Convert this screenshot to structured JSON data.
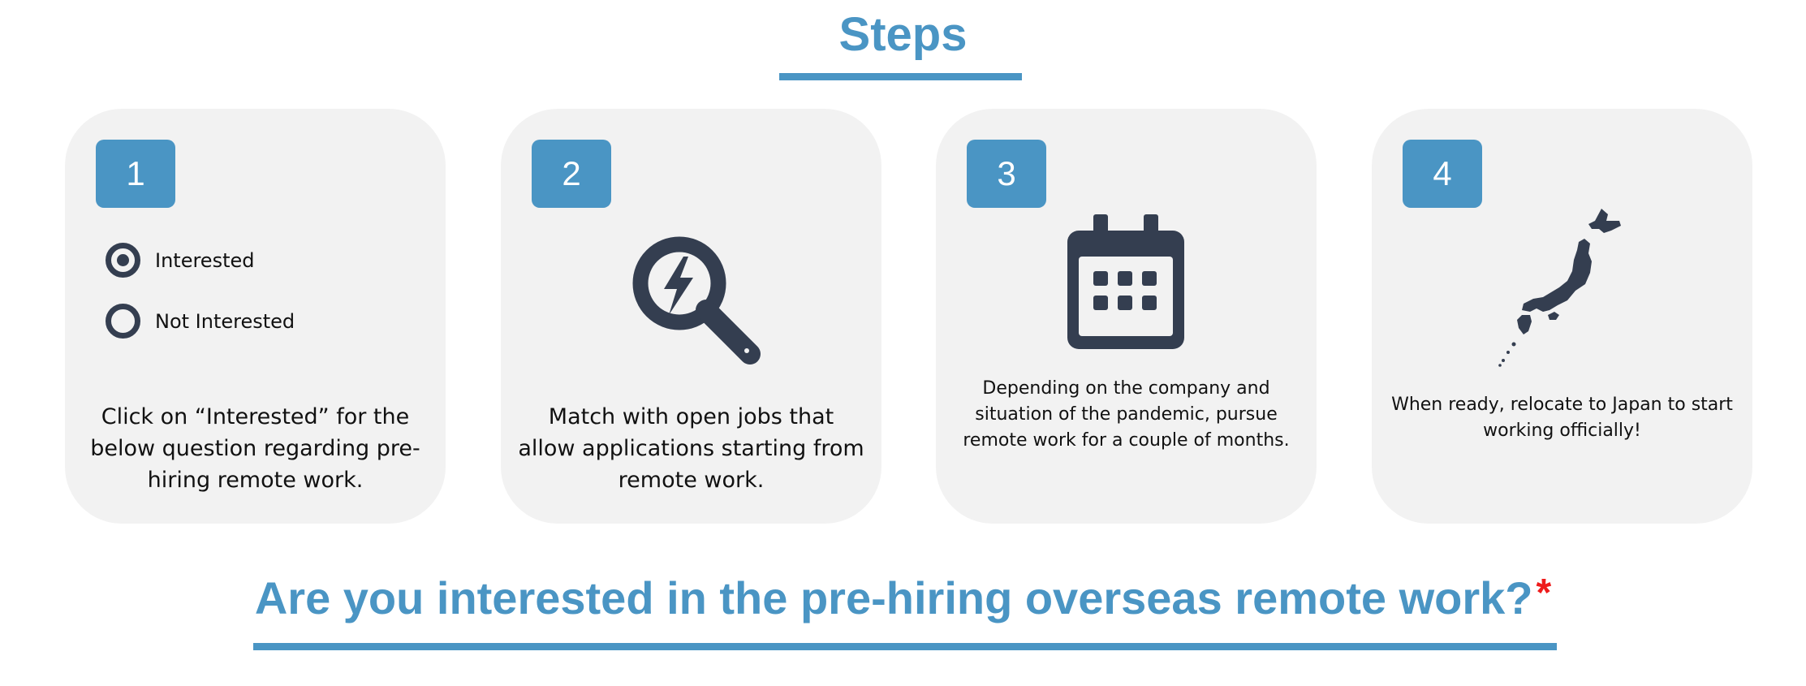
{
  "title": "Steps",
  "steps": [
    {
      "number": "1",
      "icon": "radio-options-icon",
      "options": [
        {
          "label": "Interested",
          "selected": true
        },
        {
          "label": "Not Interested",
          "selected": false
        }
      ],
      "text": "Click on “Interested” for the below question regarding pre-hiring remote work."
    },
    {
      "number": "2",
      "icon": "search-lightning-icon",
      "text": "Match with open jobs that allow applications starting from remote work."
    },
    {
      "number": "3",
      "icon": "calendar-icon",
      "text": "Depending on the company and situation of the pandemic, pursue remote work for a couple of months."
    },
    {
      "number": "4",
      "icon": "japan-map-icon",
      "text": "When ready, relocate to Japan to start working officially!"
    }
  ],
  "question": {
    "text": "Are you interested in the pre-hiring overseas remote work?",
    "required_mark": "*"
  },
  "colors": {
    "accent": "#4a95c4",
    "card_background": "#f2f2f2",
    "icon_dark": "#343e50",
    "required": "#ee1c1c"
  }
}
